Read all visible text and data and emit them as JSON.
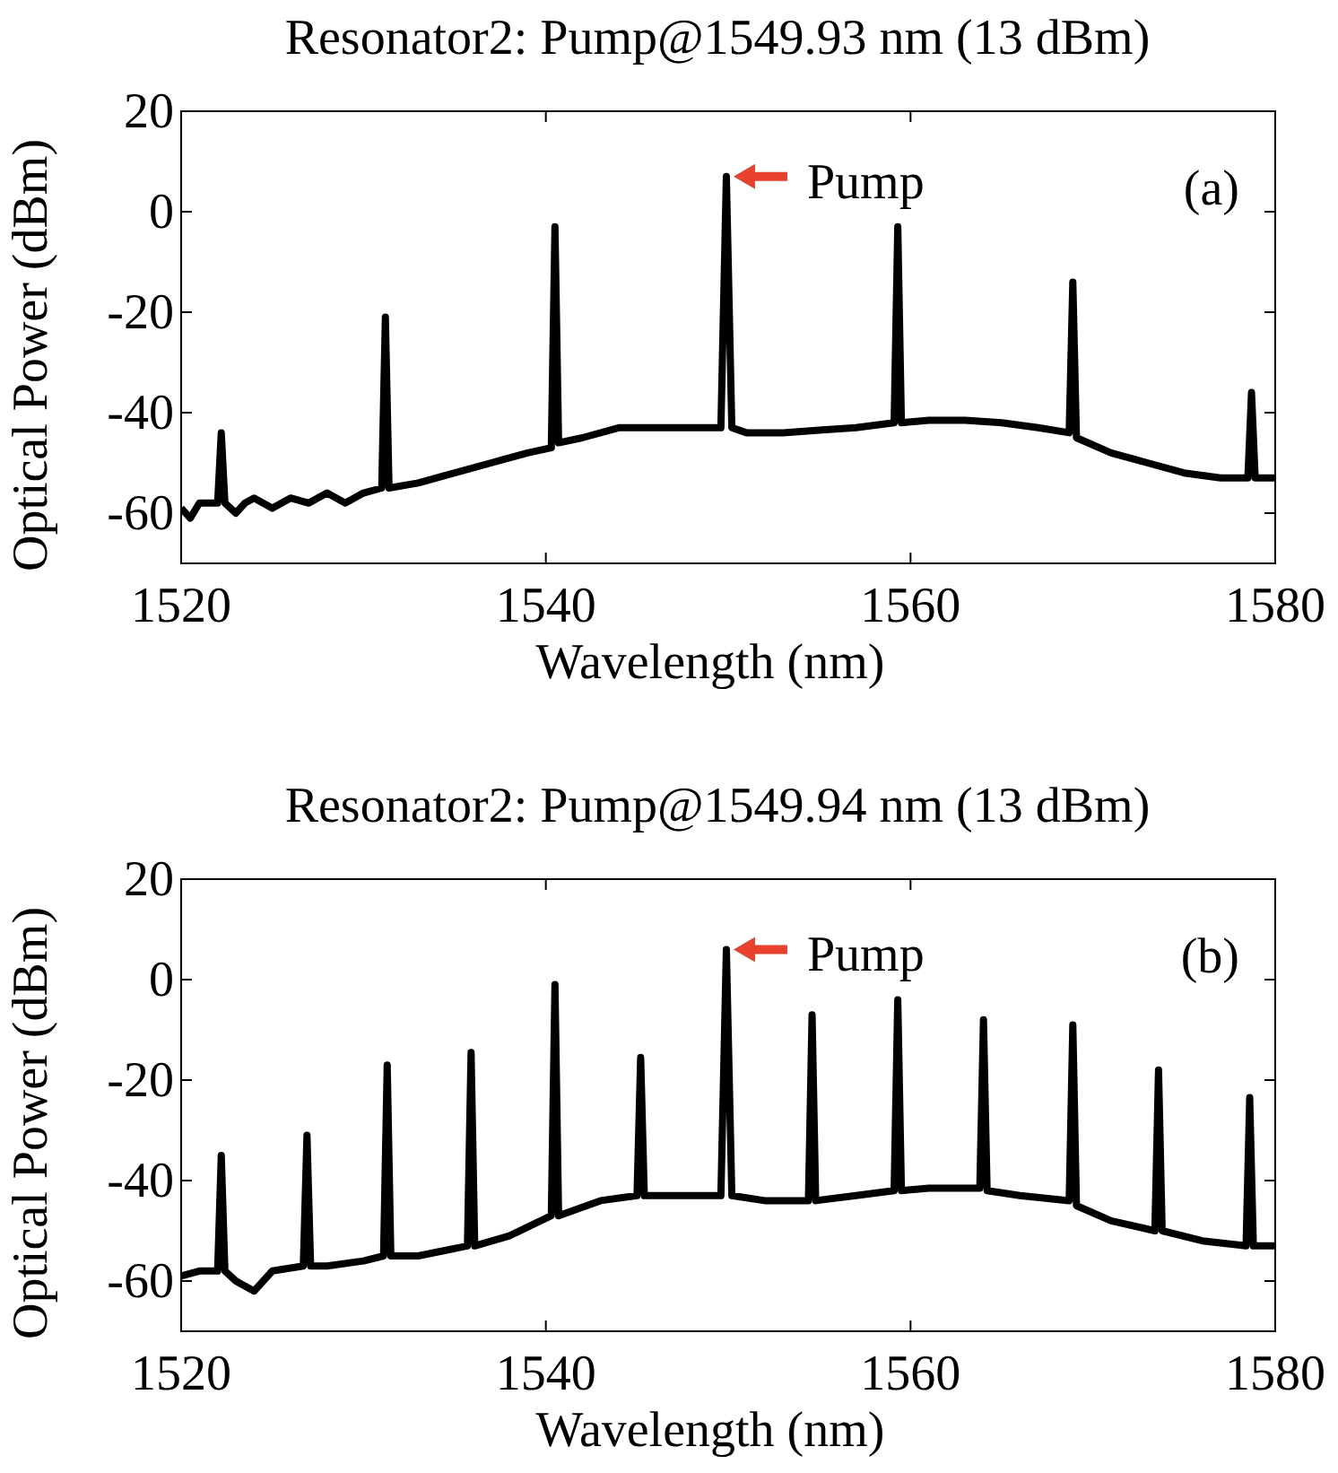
{
  "chart_data": [
    {
      "type": "line",
      "title": "Resonator2: Pump@1549.93 nm (13 dBm)",
      "xlabel": "Wavelength (nm)",
      "ylabel": "Optical Power (dBm)",
      "xlim": [
        1520,
        1580
      ],
      "ylim": [
        -70,
        20
      ],
      "xticks": [
        1520,
        1540,
        1560,
        1580
      ],
      "yticks": [
        -60,
        -40,
        -20,
        0,
        20
      ],
      "grid": false,
      "annotations": [
        "(a)",
        {
          "text": "Pump",
          "x": 1549.9,
          "y": 7
        }
      ],
      "series": [
        {
          "color": "#000000",
          "x": [
            1520,
            1520.5,
            1521,
            1522.0,
            1522.2,
            1522.4,
            1523,
            1523.5,
            1524,
            1525,
            1526,
            1527,
            1528,
            1529,
            1530,
            1531.0,
            1531.2,
            1531.4,
            1533,
            1535,
            1537,
            1539,
            1540.3,
            1540.5,
            1540.7,
            1542,
            1544,
            1546,
            1548,
            1549.6,
            1549.9,
            1550.2,
            1551,
            1553,
            1555,
            1557,
            1559.1,
            1559.3,
            1559.5,
            1561,
            1563,
            1565,
            1567,
            1568.7,
            1568.9,
            1569.1,
            1571,
            1573,
            1575,
            1577,
            1578.5,
            1578.7,
            1578.9,
            1580
          ],
          "values": [
            -59,
            -61,
            -58,
            -58,
            -44,
            -58,
            -60,
            -58,
            -57,
            -59,
            -57,
            -58,
            -56,
            -58,
            -56,
            -55,
            -21,
            -55,
            -54,
            -52,
            -50,
            -48,
            -47,
            -3,
            -46,
            -45,
            -43,
            -43,
            -43,
            -43,
            7,
            -43,
            -44,
            -44,
            -43.5,
            -43,
            -42,
            -3,
            -42,
            -41.5,
            -41.5,
            -42,
            -43,
            -44,
            -14,
            -45,
            -48,
            -50,
            -52,
            -53,
            -53,
            -36,
            -53,
            -53
          ]
        }
      ]
    },
    {
      "type": "line",
      "title": "Resonator2: Pump@1549.94 nm (13 dBm)",
      "xlabel": "Wavelength (nm)",
      "ylabel": "Optical Power (dBm)",
      "xlim": [
        1520,
        1580
      ],
      "ylim": [
        -70,
        20
      ],
      "xticks": [
        1520,
        1540,
        1560,
        1580
      ],
      "yticks": [
        -60,
        -40,
        -20,
        0,
        20
      ],
      "grid": false,
      "annotations": [
        "(b)",
        {
          "text": "Pump",
          "x": 1549.9,
          "y": 6
        }
      ],
      "series": [
        {
          "color": "#000000",
          "x": [
            1520,
            1521,
            1522.0,
            1522.2,
            1522.4,
            1523,
            1524,
            1525,
            1526.7,
            1526.9,
            1527.1,
            1528,
            1530,
            1531.1,
            1531.3,
            1531.5,
            1533,
            1535.7,
            1535.9,
            1536.1,
            1538,
            1540.3,
            1540.5,
            1540.7,
            1543,
            1545.0,
            1545.2,
            1545.4,
            1547,
            1549.6,
            1549.9,
            1550.2,
            1552,
            1554.4,
            1554.6,
            1554.8,
            1557,
            1559.1,
            1559.3,
            1559.5,
            1561,
            1563.8,
            1564.0,
            1564.2,
            1566,
            1568.7,
            1568.9,
            1569.1,
            1571,
            1573.4,
            1573.6,
            1573.8,
            1576,
            1578.4,
            1578.6,
            1578.8,
            1580
          ],
          "values": [
            -59,
            -58,
            -58,
            -35,
            -58,
            -60,
            -62,
            -58,
            -57,
            -31,
            -57,
            -57,
            -56,
            -55,
            -17,
            -55,
            -55,
            -53,
            -14.5,
            -53,
            -51,
            -47,
            -1,
            -47,
            -44,
            -43,
            -15.5,
            -43,
            -43,
            -43,
            6,
            -43,
            -44,
            -44,
            -7,
            -44,
            -43,
            -42,
            -4,
            -42,
            -41.5,
            -41.5,
            -8,
            -42,
            -43,
            -44,
            -9,
            -45,
            -48,
            -50,
            -18,
            -50,
            -52,
            -53,
            -23.5,
            -53,
            -53
          ]
        }
      ]
    }
  ]
}
